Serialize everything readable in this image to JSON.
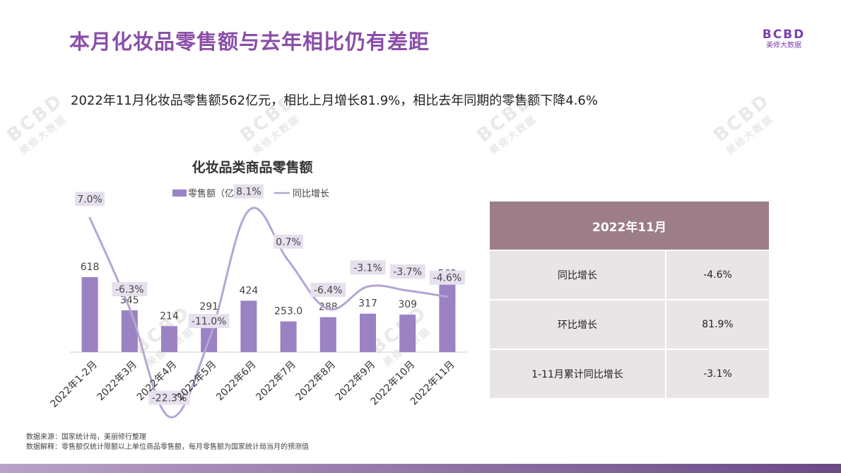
{
  "header": {
    "title": "本月化妆品零售额与去年相比仍有差距",
    "subtitle": "2022年11月化妆品零售额562亿元，相比上月增长81.9%，相比去年同期的零售额下降4.6%",
    "logo_mark": "BCBD",
    "logo_text": "美修大数据"
  },
  "chart_data": {
    "type": "bar",
    "title": "化妆品类商品零售额",
    "categories": [
      "2022年1-2月",
      "2022年3月",
      "2022年4月",
      "2022年5月",
      "2022年6月",
      "2022年7月",
      "2022年8月",
      "2022年9月",
      "2022年10月",
      "2022年11月"
    ],
    "series": [
      {
        "name": "零售额（亿元）",
        "type": "bar",
        "values": [
          618,
          345,
          214,
          291,
          424,
          253.0,
          288,
          317,
          309,
          562
        ],
        "labels": [
          "618",
          "345",
          "214",
          "291",
          "424",
          "253.0",
          "288",
          "317",
          "309",
          "562"
        ],
        "color": "#9b82c3"
      },
      {
        "name": "同比增长",
        "type": "line",
        "values": [
          7.0,
          -6.3,
          -22.3,
          -11.0,
          8.1,
          0.7,
          -6.4,
          -3.1,
          -3.7,
          -4.6
        ],
        "labels": [
          "7.0%",
          "-6.3%",
          "-22.3%",
          "-11.0%",
          "8.1%",
          "0.7%",
          "-6.4%",
          "-3.1%",
          "-3.7%",
          "-4.6%"
        ],
        "color": "#b5a5d4"
      }
    ],
    "legend": "top",
    "grid": false
  },
  "summary_table": {
    "header": "2022年11月",
    "rows": [
      {
        "label": "同比增长",
        "value": "-4.6%"
      },
      {
        "label": "环比增长",
        "value": "81.9%"
      },
      {
        "label": "1-11月累计同比增长",
        "value": "-3.1%"
      }
    ]
  },
  "notes": {
    "source": "数据来源：国家统计局，美丽修行整理",
    "explain": "数据解释：零售额仅统计限额以上单位商品零售额，每月零售额为国家统计局当月的预测值"
  },
  "watermark": {
    "mark": "BCBD",
    "text": "美修大数据"
  }
}
